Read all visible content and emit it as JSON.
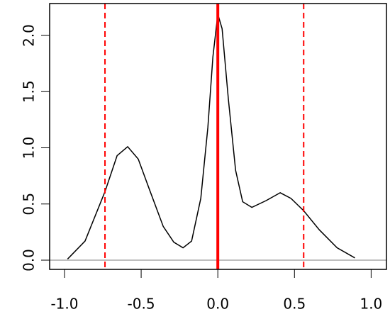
{
  "chart_data": {
    "type": "line",
    "x": [
      -0.98,
      -0.866,
      -0.736,
      -0.657,
      -0.588,
      -0.519,
      -0.449,
      -0.356,
      -0.287,
      -0.227,
      -0.171,
      -0.111,
      -0.065,
      -0.032,
      0,
      0.028,
      0.069,
      0.116,
      0.162,
      0.222,
      0.315,
      0.407,
      0.477,
      0.56,
      0.662,
      0.778,
      0.894
    ],
    "series": [
      {
        "color": "#000000",
        "values": [
          0.01,
          0.17,
          0.61,
          0.93,
          1.01,
          0.9,
          0.64,
          0.3,
          0.16,
          0.11,
          0.17,
          0.55,
          1.18,
          1.81,
          2.19,
          2.06,
          1.43,
          0.8,
          0.52,
          0.47,
          0.53,
          0.6,
          0.55,
          0.44,
          0.27,
          0.11,
          0.02
        ]
      }
    ],
    "xlim": [
      -1.097,
      1.1
    ],
    "ylim": [
      -0.082,
      2.284
    ],
    "xticks": [
      {
        "value": -1,
        "label": "-1.0"
      },
      {
        "value": -0.5,
        "label": "-0.5"
      },
      {
        "value": 0,
        "label": "0.0"
      },
      {
        "value": 0.5,
        "label": "0.5"
      },
      {
        "value": 1,
        "label": "1.0"
      }
    ],
    "yticks": [
      {
        "value": 0,
        "label": "0.0"
      },
      0.5,
      {
        "value": 1,
        "label": "1.0"
      },
      1.5,
      {
        "value": 2,
        "label": "2.0"
      }
    ],
    "vlines": [
      {
        "x": -0.736,
        "color": "#ff0000",
        "dashed": true
      },
      {
        "x": 0,
        "color": "#ff0000",
        "dashed": false
      },
      {
        "x": 0.56,
        "color": "#ff0000",
        "dashed": true
      }
    ],
    "hlines": [
      {
        "y": 0,
        "color": "#bebebe"
      }
    ]
  }
}
